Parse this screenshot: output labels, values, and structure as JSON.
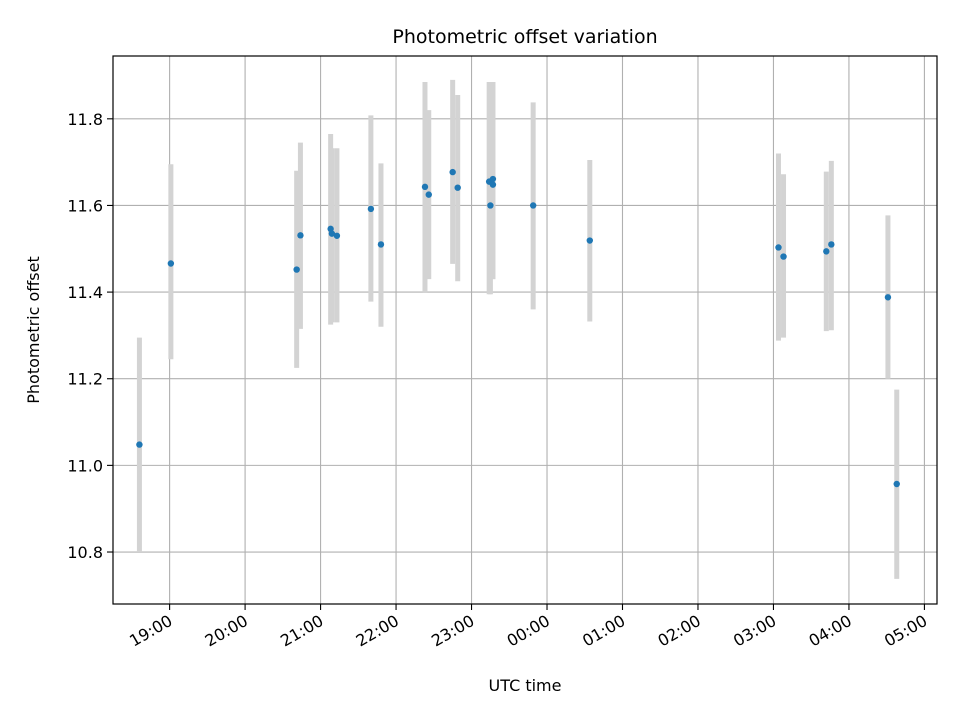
{
  "chart_data": {
    "type": "scatter",
    "title": "Photometric offset variation",
    "xlabel": "UTC time",
    "ylabel": "Photometric offset",
    "x_unit": "UTC time (hh:mm)",
    "xlim": [
      "18:15",
      "05:10"
    ],
    "ylim": [
      10.68,
      11.945
    ],
    "grid": true,
    "marker_color": "#1f77b4",
    "errorbar_color": "#d3d3d3",
    "x_ticks": [
      {
        "t": "19:00",
        "label": "19:00"
      },
      {
        "t": "20:00",
        "label": "20:00"
      },
      {
        "t": "21:00",
        "label": "21:00"
      },
      {
        "t": "22:00",
        "label": "22:00"
      },
      {
        "t": "23:00",
        "label": "23:00"
      },
      {
        "t": "00:00",
        "label": "00:00"
      },
      {
        "t": "01:00",
        "label": "01:00"
      },
      {
        "t": "02:00",
        "label": "02:00"
      },
      {
        "t": "03:00",
        "label": "03:00"
      },
      {
        "t": "04:00",
        "label": "04:00"
      },
      {
        "t": "05:00",
        "label": "05:00"
      }
    ],
    "y_ticks": [
      {
        "v": 10.8,
        "label": "10.8"
      },
      {
        "v": 11.0,
        "label": "11.0"
      },
      {
        "v": 11.2,
        "label": "11.2"
      },
      {
        "v": 11.4,
        "label": "11.4"
      },
      {
        "v": 11.6,
        "label": "11.6"
      },
      {
        "v": 11.8,
        "label": "11.8"
      }
    ],
    "points": [
      {
        "t": "18:36",
        "y": 11.048,
        "lo": 10.8,
        "hi": 11.295
      },
      {
        "t": "19:01",
        "y": 11.466,
        "lo": 11.245,
        "hi": 11.695
      },
      {
        "t": "20:41",
        "y": 11.452,
        "lo": 11.225,
        "hi": 11.68
      },
      {
        "t": "20:44",
        "y": 11.531,
        "lo": 11.315,
        "hi": 11.745
      },
      {
        "t": "21:48",
        "y": 11.51,
        "lo": 11.32,
        "hi": 11.697
      },
      {
        "t": "21:08",
        "y": 11.546,
        "lo": 11.325,
        "hi": 11.765
      },
      {
        "t": "21:09",
        "y": 11.535,
        "lo": 11.33,
        "hi": 11.732
      },
      {
        "t": "21:13",
        "y": 11.53,
        "lo": 11.33,
        "hi": 11.732
      },
      {
        "t": "21:40",
        "y": 11.592,
        "lo": 11.378,
        "hi": 11.808
      },
      {
        "t": "22:23",
        "y": 11.643,
        "lo": 11.398,
        "hi": 11.885
      },
      {
        "t": "22:26",
        "y": 11.625,
        "lo": 11.43,
        "hi": 11.82
      },
      {
        "t": "22:45",
        "y": 11.677,
        "lo": 11.465,
        "hi": 11.89
      },
      {
        "t": "22:49",
        "y": 11.641,
        "lo": 11.425,
        "hi": 11.855
      },
      {
        "t": "23:14",
        "y": 11.655,
        "lo": 11.395,
        "hi": 11.885
      },
      {
        "t": "23:15",
        "y": 11.6,
        "lo": 11.395,
        "hi": 11.885
      },
      {
        "t": "23:17",
        "y": 11.661,
        "lo": 11.43,
        "hi": 11.885
      },
      {
        "t": "23:17",
        "y": 11.648,
        "lo": 11.43,
        "hi": 11.885
      },
      {
        "t": "23:49",
        "y": 11.6,
        "lo": 11.36,
        "hi": 11.838
      },
      {
        "t": "00:34",
        "y": 11.519,
        "lo": 11.332,
        "hi": 11.705
      },
      {
        "t": "03:04",
        "y": 11.503,
        "lo": 11.288,
        "hi": 11.72
      },
      {
        "t": "03:08",
        "y": 11.482,
        "lo": 11.295,
        "hi": 11.672
      },
      {
        "t": "03:42",
        "y": 11.494,
        "lo": 11.31,
        "hi": 11.678
      },
      {
        "t": "03:46",
        "y": 11.51,
        "lo": 11.312,
        "hi": 11.703
      },
      {
        "t": "04:31",
        "y": 11.388,
        "lo": 11.2,
        "hi": 11.577
      },
      {
        "t": "04:38",
        "y": 10.957,
        "lo": 10.738,
        "hi": 11.175
      }
    ]
  }
}
